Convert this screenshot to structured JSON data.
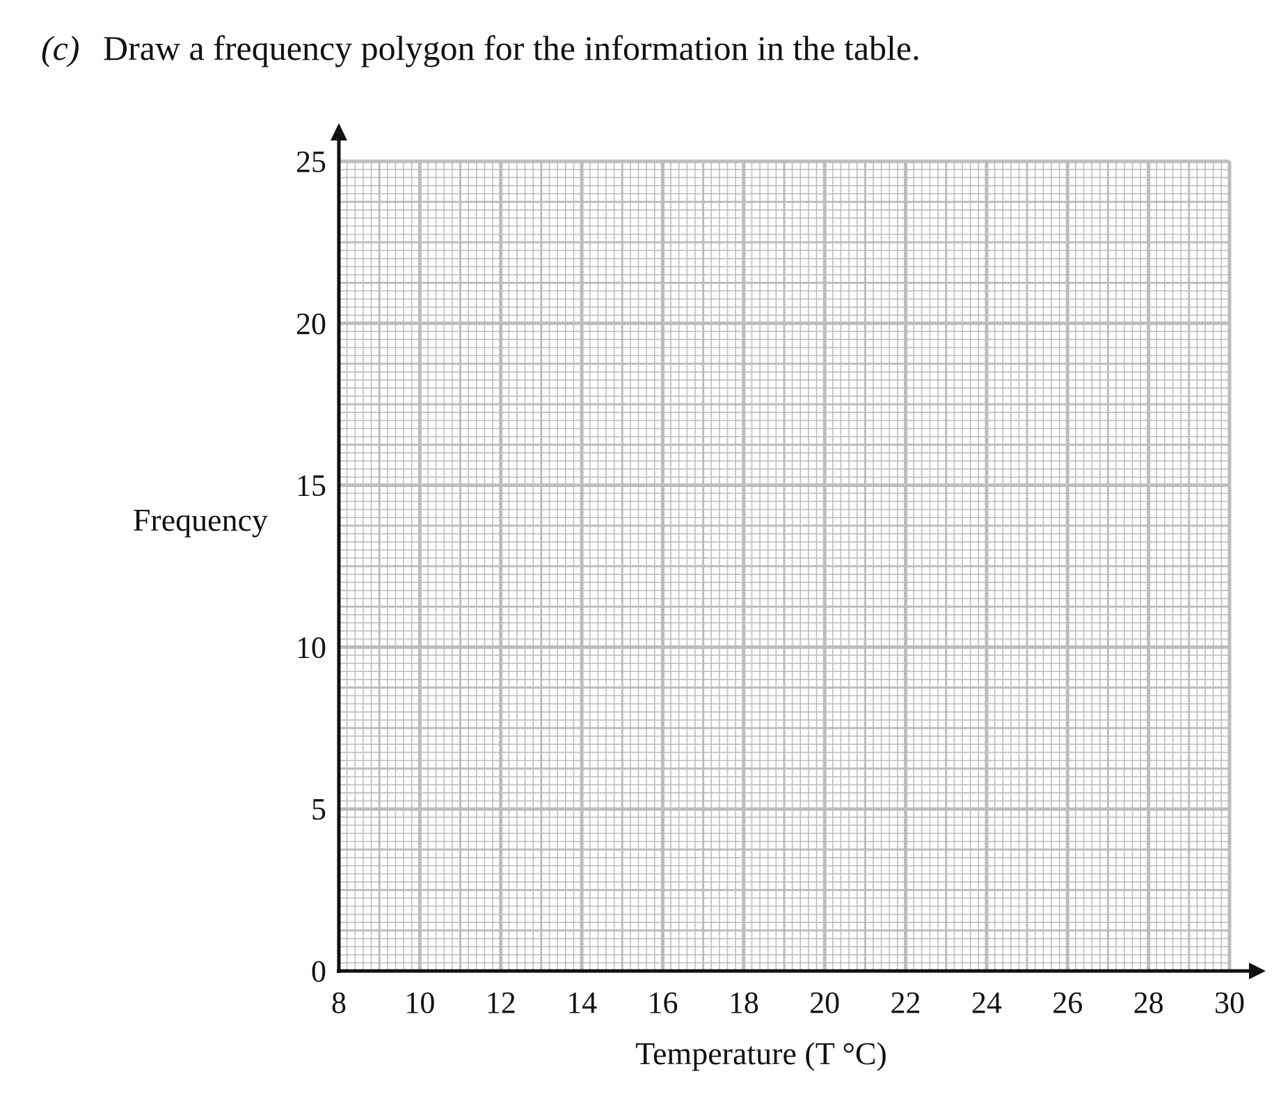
{
  "chart_data": {
    "type": "line",
    "question_label": "(c)",
    "title": "Draw a frequency polygon for the information in the table.",
    "x_label": "Temperature (T °C)",
    "y_label": "Frequency",
    "xlim": [
      8,
      30
    ],
    "xticks": [
      8,
      10,
      12,
      14,
      16,
      18,
      20,
      22,
      24,
      26,
      28,
      30
    ],
    "ylim": [
      0,
      25
    ],
    "yticks": [
      0,
      5,
      10,
      15,
      20,
      25
    ],
    "grid": true,
    "grid_color": "#bdbdc0",
    "axis_color": "#111111"
  }
}
